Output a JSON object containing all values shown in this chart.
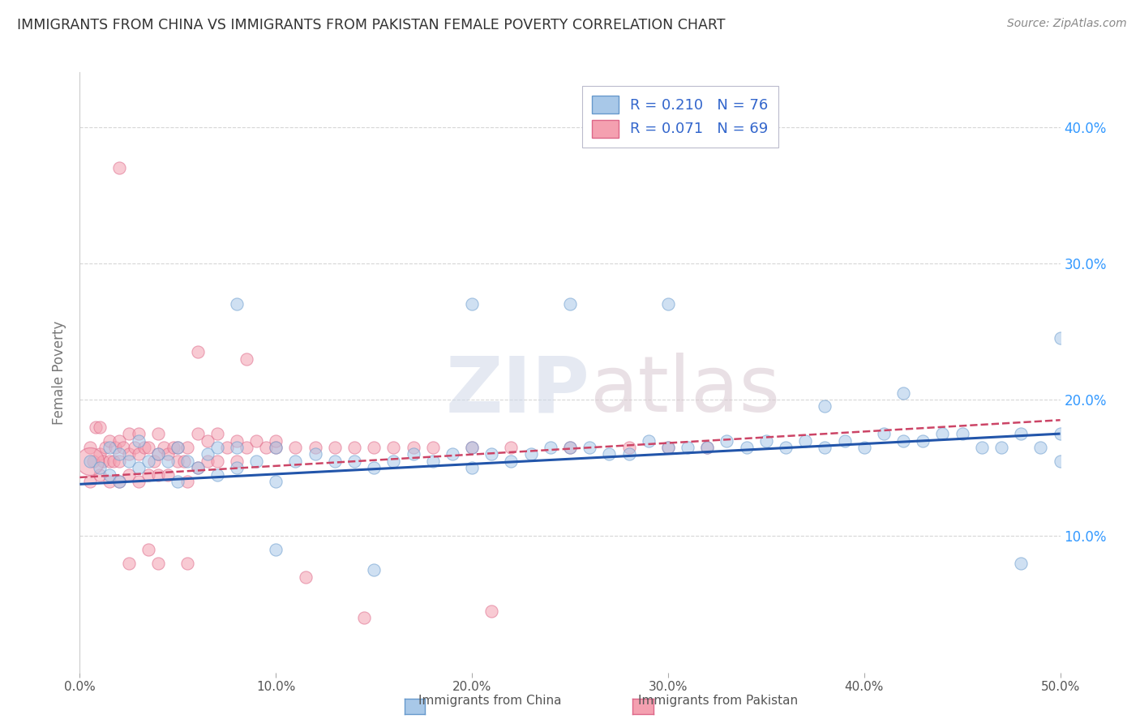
{
  "title": "IMMIGRANTS FROM CHINA VS IMMIGRANTS FROM PAKISTAN FEMALE POVERTY CORRELATION CHART",
  "source": "Source: ZipAtlas.com",
  "ylabel": "Female Poverty",
  "xlim": [
    0.0,
    0.5
  ],
  "ylim": [
    0.0,
    0.44
  ],
  "xticks": [
    0.0,
    0.1,
    0.2,
    0.3,
    0.4,
    0.5
  ],
  "xticklabels": [
    "0.0%",
    "10.0%",
    "20.0%",
    "30.0%",
    "40.0%",
    "50.0%"
  ],
  "ytick_positions": [
    0.1,
    0.2,
    0.3,
    0.4
  ],
  "ytick_labels": [
    "10.0%",
    "20.0%",
    "30.0%",
    "40.0%"
  ],
  "china_color": "#a8c8e8",
  "china_edge": "#6699cc",
  "pakistan_color": "#f4a0b0",
  "pakistan_edge": "#dd6688",
  "china_R": 0.21,
  "china_N": 76,
  "pakistan_R": 0.071,
  "pakistan_N": 69,
  "legend_china_label": "Immigrants from China",
  "legend_pakistan_label": "Immigrants from Pakistan",
  "watermark": "ZIPatlas",
  "background_color": "#ffffff",
  "grid_color": "#cccccc",
  "title_color": "#333333",
  "axis_label_color": "#777777",
  "china_line_color": "#2255aa",
  "pakistan_line_color": "#cc4466",
  "legend_text_color": "#3366cc",
  "right_tick_color": "#3399ff",
  "point_size": 120,
  "point_alpha": 0.55,
  "china_x": [
    0.005,
    0.01,
    0.015,
    0.015,
    0.02,
    0.02,
    0.025,
    0.03,
    0.03,
    0.035,
    0.04,
    0.045,
    0.05,
    0.05,
    0.055,
    0.06,
    0.065,
    0.07,
    0.07,
    0.08,
    0.08,
    0.09,
    0.1,
    0.1,
    0.11,
    0.12,
    0.13,
    0.14,
    0.15,
    0.16,
    0.17,
    0.18,
    0.19,
    0.2,
    0.2,
    0.21,
    0.22,
    0.23,
    0.24,
    0.25,
    0.26,
    0.27,
    0.28,
    0.29,
    0.3,
    0.31,
    0.32,
    0.33,
    0.34,
    0.35,
    0.36,
    0.37,
    0.38,
    0.39,
    0.4,
    0.41,
    0.42,
    0.43,
    0.44,
    0.45,
    0.46,
    0.47,
    0.48,
    0.49,
    0.5,
    0.5,
    0.5,
    0.48,
    0.42,
    0.38,
    0.3,
    0.25,
    0.2,
    0.15,
    0.1,
    0.08
  ],
  "china_y": [
    0.155,
    0.15,
    0.145,
    0.165,
    0.14,
    0.16,
    0.155,
    0.15,
    0.17,
    0.155,
    0.16,
    0.155,
    0.14,
    0.165,
    0.155,
    0.15,
    0.16,
    0.145,
    0.165,
    0.15,
    0.165,
    0.155,
    0.14,
    0.165,
    0.155,
    0.16,
    0.155,
    0.155,
    0.15,
    0.155,
    0.16,
    0.155,
    0.16,
    0.15,
    0.165,
    0.16,
    0.155,
    0.16,
    0.165,
    0.165,
    0.165,
    0.16,
    0.16,
    0.17,
    0.165,
    0.165,
    0.165,
    0.17,
    0.165,
    0.17,
    0.165,
    0.17,
    0.165,
    0.17,
    0.165,
    0.175,
    0.17,
    0.17,
    0.175,
    0.175,
    0.165,
    0.165,
    0.175,
    0.165,
    0.175,
    0.155,
    0.245,
    0.08,
    0.205,
    0.195,
    0.27,
    0.27,
    0.27,
    0.075,
    0.09,
    0.27
  ],
  "pakistan_x": [
    0.005,
    0.005,
    0.007,
    0.008,
    0.01,
    0.01,
    0.01,
    0.012,
    0.013,
    0.015,
    0.015,
    0.015,
    0.017,
    0.018,
    0.02,
    0.02,
    0.02,
    0.022,
    0.025,
    0.025,
    0.025,
    0.028,
    0.03,
    0.03,
    0.03,
    0.033,
    0.035,
    0.035,
    0.038,
    0.04,
    0.04,
    0.04,
    0.043,
    0.045,
    0.045,
    0.048,
    0.05,
    0.05,
    0.053,
    0.055,
    0.055,
    0.06,
    0.06,
    0.065,
    0.065,
    0.07,
    0.07,
    0.075,
    0.08,
    0.08,
    0.085,
    0.09,
    0.095,
    0.1,
    0.1,
    0.11,
    0.12,
    0.13,
    0.14,
    0.15,
    0.16,
    0.17,
    0.18,
    0.2,
    0.22,
    0.25,
    0.28,
    0.3,
    0.32
  ],
  "pakistan_y": [
    0.14,
    0.165,
    0.155,
    0.18,
    0.145,
    0.16,
    0.18,
    0.155,
    0.165,
    0.14,
    0.155,
    0.17,
    0.155,
    0.165,
    0.14,
    0.155,
    0.17,
    0.165,
    0.145,
    0.16,
    0.175,
    0.165,
    0.14,
    0.16,
    0.175,
    0.165,
    0.145,
    0.165,
    0.155,
    0.145,
    0.16,
    0.175,
    0.165,
    0.145,
    0.16,
    0.165,
    0.155,
    0.165,
    0.155,
    0.14,
    0.165,
    0.15,
    0.175,
    0.155,
    0.17,
    0.155,
    0.175,
    0.165,
    0.155,
    0.17,
    0.165,
    0.17,
    0.165,
    0.165,
    0.17,
    0.165,
    0.165,
    0.165,
    0.165,
    0.165,
    0.165,
    0.165,
    0.165,
    0.165,
    0.165,
    0.165,
    0.165,
    0.165,
    0.165
  ],
  "pakistan_special_x": [
    0.02,
    0.06,
    0.085,
    0.145,
    0.21,
    0.115,
    0.055,
    0.04,
    0.025,
    0.035
  ],
  "pakistan_special_y": [
    0.37,
    0.235,
    0.23,
    0.04,
    0.045,
    0.07,
    0.08,
    0.08,
    0.08,
    0.09
  ],
  "pakistan_large_x": [
    0.005
  ],
  "pakistan_large_y": [
    0.155
  ],
  "pakistan_large_size": [
    600
  ]
}
